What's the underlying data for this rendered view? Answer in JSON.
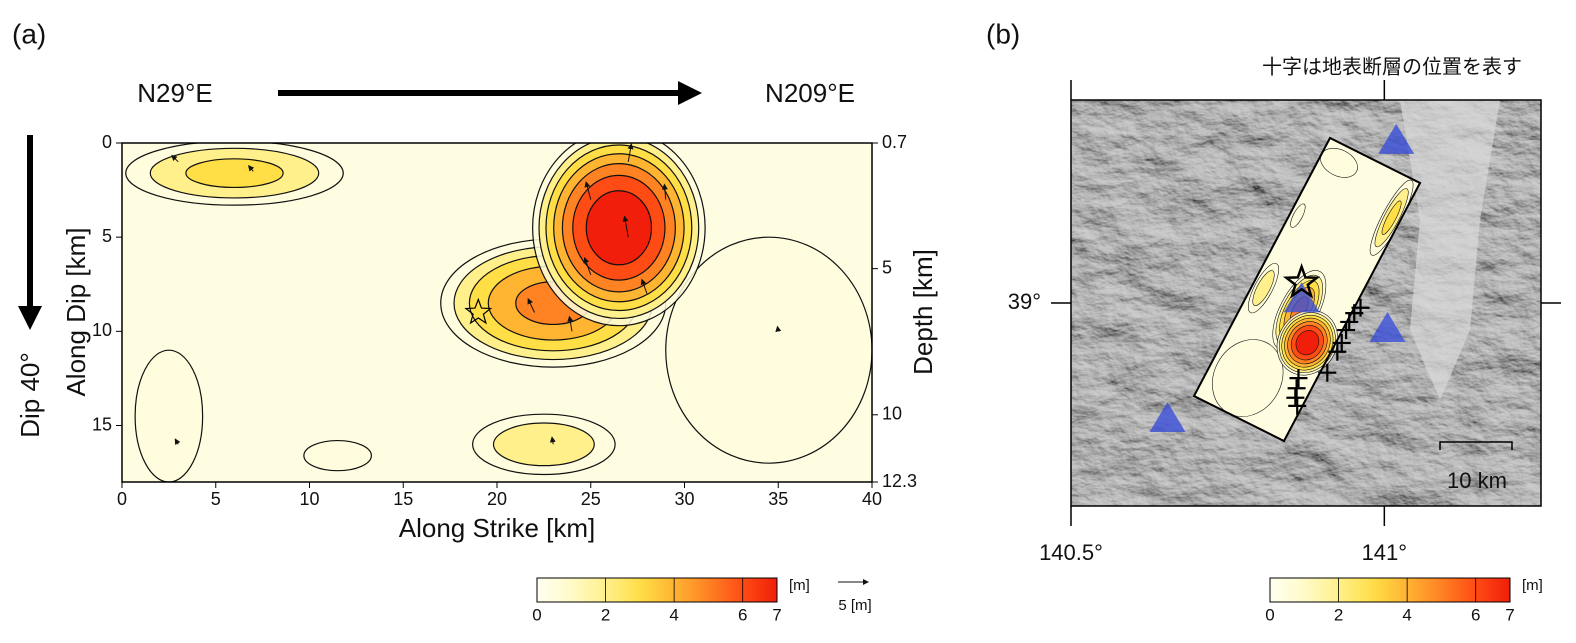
{
  "chart_data": [
    {
      "type": "heatmap",
      "panel_label": "(a)",
      "strike_left": "N29°E",
      "strike_right": "N209°E",
      "dip_label": "Dip 40°",
      "x_label": "Along Strike [km]",
      "y_label": "Along Dip [km]",
      "y2_label": "Depth [km]",
      "xlim": [
        0,
        40
      ],
      "xticks": [
        0,
        5,
        10,
        15,
        20,
        25,
        30,
        35,
        40
      ],
      "ylim": [
        18,
        0
      ],
      "yticks": [
        0,
        5,
        10,
        15
      ],
      "y2lim": [
        12.3,
        0.7
      ],
      "y2ticks": [
        0.7,
        5,
        10,
        12.3
      ],
      "patches": [
        {
          "cx": 6,
          "cy": 1.6,
          "rx": 5.8,
          "ry": 1.7,
          "peak": 2.5
        },
        {
          "cx": 34.5,
          "cy": 11,
          "rx": 5.5,
          "ry": 6,
          "peak": 1
        },
        {
          "cx": 23,
          "cy": 8.5,
          "rx": 6,
          "ry": 3.4,
          "peak": 4.5
        },
        {
          "cx": 26.5,
          "cy": 4.5,
          "rx": 4.6,
          "ry": 5.2,
          "peak": 7
        },
        {
          "cx": 22.5,
          "cy": 16,
          "rx": 3.8,
          "ry": 1.6,
          "peak": 2
        },
        {
          "cx": 2.5,
          "cy": 14.5,
          "rx": 1.8,
          "ry": 3.5,
          "peak": 1
        },
        {
          "cx": 11.5,
          "cy": 16.6,
          "rx": 1.8,
          "ry": 0.8,
          "peak": 1
        }
      ],
      "vectors": [
        {
          "x": 27,
          "y": 1,
          "slip": 3,
          "rake": 80
        },
        {
          "x": 25,
          "y": 3,
          "slip": 3,
          "rake": 105
        },
        {
          "x": 27,
          "y": 5,
          "slip": 3.5,
          "rake": 100
        },
        {
          "x": 25,
          "y": 7,
          "slip": 3,
          "rake": 110
        },
        {
          "x": 29,
          "y": 3,
          "slip": 2.5,
          "rake": 95
        },
        {
          "x": 22,
          "y": 9,
          "slip": 2.5,
          "rake": 115
        },
        {
          "x": 24,
          "y": 10,
          "slip": 2.5,
          "rake": 100
        },
        {
          "x": 28,
          "y": 8,
          "slip": 2.5,
          "rake": 110
        },
        {
          "x": 3,
          "y": 1,
          "slip": 1.5,
          "rake": 135
        },
        {
          "x": 7,
          "y": 1.5,
          "slip": 1.2,
          "rake": 130
        },
        {
          "x": 3,
          "y": 16,
          "slip": 1,
          "rake": 120
        },
        {
          "x": 23,
          "y": 16,
          "slip": 1.2,
          "rake": 100
        },
        {
          "x": 35,
          "y": 10,
          "slip": 0.8,
          "rake": 100
        }
      ],
      "hypocenter": {
        "x": 19,
        "y": 9
      },
      "clim": [
        0,
        7
      ],
      "cticks": [
        0,
        2,
        4,
        6,
        7
      ],
      "cunit": "[m]",
      "arrow_scale": 5,
      "arrow_scale_label": "5 [m]"
    },
    {
      "type": "map",
      "panel_label": "(b)",
      "note": "十字は地表断層の位置を表す",
      "xlim": [
        140.5,
        141.25
      ],
      "xticks": [
        {
          "value": 140.5,
          "label": "140.5°"
        },
        {
          "value": 141,
          "label": "141°"
        }
      ],
      "ylim": [
        38.7,
        39.3
      ],
      "yticks": [
        {
          "value": 39,
          "label": "39°"
        }
      ],
      "stations": [
        {
          "lon": 141.019,
          "lat": 39.241
        },
        {
          "lon": 141.005,
          "lat": 38.963
        },
        {
          "lon": 140.868,
          "lat": 39.007
        },
        {
          "lon": 140.654,
          "lat": 38.83
        }
      ],
      "epicenter": {
        "lon": 140.868,
        "lat": 39.03
      },
      "faults": [
        {
          "lon": 140.962,
          "lat": 38.993
        },
        {
          "lon": 140.952,
          "lat": 38.985
        },
        {
          "lon": 140.944,
          "lat": 38.972
        },
        {
          "lon": 140.939,
          "lat": 38.96
        },
        {
          "lon": 140.932,
          "lat": 38.941
        },
        {
          "lon": 140.925,
          "lat": 38.928
        },
        {
          "lon": 140.909,
          "lat": 38.897
        },
        {
          "lon": 140.863,
          "lat": 38.889
        },
        {
          "lon": 140.86,
          "lat": 38.874
        },
        {
          "lon": 140.858,
          "lat": 38.86
        },
        {
          "lon": 140.861,
          "lat": 38.848
        }
      ],
      "scale_label": "10 km",
      "clim": [
        0,
        7
      ],
      "cticks": [
        0,
        2,
        4,
        6,
        7
      ],
      "cunit": "[m]"
    }
  ]
}
